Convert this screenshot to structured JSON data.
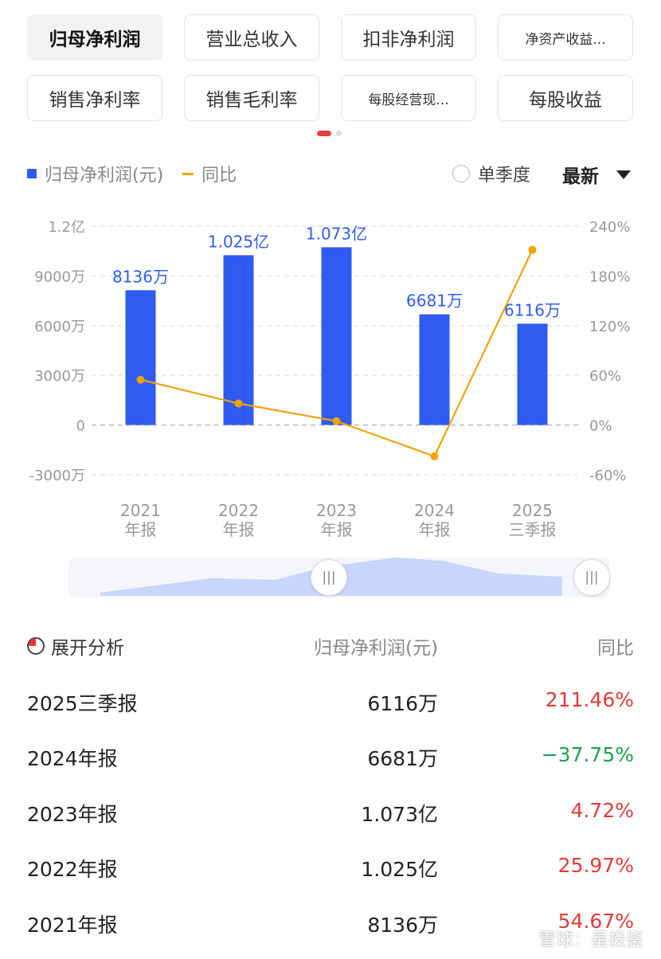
{
  "metric_chips": [
    {
      "label": "归母净利润",
      "active": true
    },
    {
      "label": "营业总收入",
      "active": false
    },
    {
      "label": "扣非净利润",
      "active": false
    },
    {
      "label": "净资产收益...",
      "active": false
    },
    {
      "label": "销售净利率",
      "active": false
    },
    {
      "label": "销售毛利率",
      "active": false
    },
    {
      "label": "每股经营现...",
      "active": false
    },
    {
      "label": "每股收益",
      "active": false
    }
  ],
  "legend": {
    "bar_label": "归母净利润(元)",
    "line_label": "同比"
  },
  "controls": {
    "single_quarter": "单季度",
    "latest": "最新"
  },
  "colors": {
    "bar": "#2f5bf0",
    "line": "#f2a20c",
    "up": "#e23b3b",
    "down": "#1aa34a",
    "active_dot": "#ee3d3d"
  },
  "chart_data": {
    "type": "bar",
    "categories": [
      [
        "2021",
        "年报"
      ],
      [
        "2022",
        "年报"
      ],
      [
        "2023",
        "年报"
      ],
      [
        "2024",
        "年报"
      ],
      [
        "2025",
        "三季报"
      ]
    ],
    "series": [
      {
        "name": "归母净利润(元)",
        "type": "bar",
        "values": [
          81360000,
          102500000,
          107300000,
          66810000,
          61160000
        ],
        "labels": [
          "8136万",
          "1.025亿",
          "1.073亿",
          "6681万",
          "6116万"
        ]
      },
      {
        "name": "同比",
        "type": "line",
        "axis": "right",
        "values": [
          54.67,
          25.97,
          4.72,
          -37.75,
          211.46
        ]
      }
    ],
    "y_left": {
      "min": -30000000,
      "max": 120000000,
      "ticks": [
        -30000000,
        0,
        30000000,
        60000000,
        90000000,
        120000000
      ],
      "tick_labels": [
        "-3000万",
        "0",
        "3000万",
        "6000万",
        "9000万",
        "1.2亿"
      ]
    },
    "y_right": {
      "min": -60,
      "max": 240,
      "ticks": [
        -60,
        0,
        60,
        120,
        180,
        240
      ],
      "tick_labels": [
        "-60%",
        "0%",
        "60%",
        "120%",
        "180%",
        "240%"
      ]
    },
    "grid": true
  },
  "range_slider": {
    "handle_left": "|||",
    "handle_right": "|||"
  },
  "table": {
    "expand_label": "展开分析",
    "col_value": "归母净利润(元)",
    "col_yoy": "同比",
    "rows": [
      {
        "period": "2025三季报",
        "value": "6116万",
        "yoy": "211.46%",
        "trend": "up"
      },
      {
        "period": "2024年报",
        "value": "6681万",
        "yoy": "−37.75%",
        "trend": "down"
      },
      {
        "period": "2023年报",
        "value": "1.073亿",
        "yoy": "4.72%",
        "trend": "up"
      },
      {
        "period": "2022年报",
        "value": "1.025亿",
        "yoy": "25.97%",
        "trend": "up"
      },
      {
        "period": "2021年报",
        "value": "8136万",
        "yoy": "54.67%",
        "trend": "up"
      }
    ]
  },
  "watermark": "雪球：星投鉴"
}
